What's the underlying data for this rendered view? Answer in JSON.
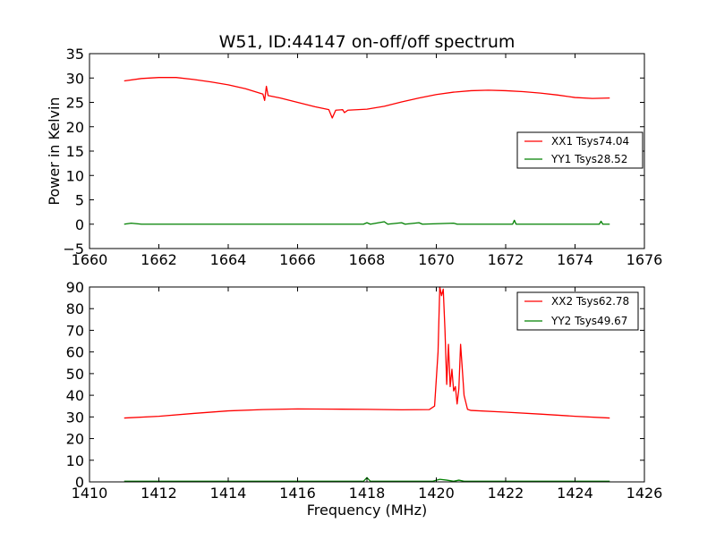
{
  "chart_data": [
    {
      "type": "line",
      "title": "W51, ID:44147 on-off/off spectrum",
      "xlabel": "",
      "ylabel": "Power in Kelvin",
      "xlim": [
        1660,
        1676
      ],
      "ylim": [
        -5,
        35
      ],
      "xticks": [
        "1660",
        "1662",
        "1664",
        "1666",
        "1668",
        "1670",
        "1672",
        "1674",
        "1676"
      ],
      "yticks": [
        "−5",
        "0",
        "5",
        "10",
        "15",
        "20",
        "25",
        "30",
        "35"
      ],
      "legend_position": "right",
      "grid": false,
      "series": [
        {
          "name": "XX1 Tsys74.04",
          "color": "#ff0000",
          "points": [
            [
              1661.0,
              29.4
            ],
            [
              1661.5,
              29.9
            ],
            [
              1662.0,
              30.1
            ],
            [
              1662.5,
              30.1
            ],
            [
              1663.0,
              29.7
            ],
            [
              1663.5,
              29.2
            ],
            [
              1664.0,
              28.6
            ],
            [
              1664.5,
              27.8
            ],
            [
              1665.0,
              26.7
            ],
            [
              1665.05,
              25.4
            ],
            [
              1665.1,
              28.3
            ],
            [
              1665.15,
              26.4
            ],
            [
              1665.5,
              25.9
            ],
            [
              1666.0,
              25.0
            ],
            [
              1666.5,
              24.1
            ],
            [
              1666.9,
              23.5
            ],
            [
              1667.0,
              21.8
            ],
            [
              1667.1,
              23.4
            ],
            [
              1667.3,
              23.5
            ],
            [
              1667.35,
              22.9
            ],
            [
              1667.45,
              23.4
            ],
            [
              1668.0,
              23.6
            ],
            [
              1668.5,
              24.2
            ],
            [
              1669.0,
              25.1
            ],
            [
              1669.5,
              25.9
            ],
            [
              1670.0,
              26.6
            ],
            [
              1670.5,
              27.1
            ],
            [
              1671.0,
              27.4
            ],
            [
              1671.5,
              27.5
            ],
            [
              1672.0,
              27.4
            ],
            [
              1672.5,
              27.2
            ],
            [
              1673.0,
              26.9
            ],
            [
              1673.5,
              26.5
            ],
            [
              1674.0,
              26.0
            ],
            [
              1674.5,
              25.8
            ],
            [
              1675.0,
              25.9
            ]
          ]
        },
        {
          "name": "YY1 Tsys28.52",
          "color": "#008000",
          "points": [
            [
              1661.0,
              0.0
            ],
            [
              1661.2,
              0.2
            ],
            [
              1661.5,
              0.0
            ],
            [
              1662.5,
              0.0
            ],
            [
              1664.0,
              0.0
            ],
            [
              1666.0,
              0.0
            ],
            [
              1667.9,
              0.0
            ],
            [
              1668.0,
              0.3
            ],
            [
              1668.1,
              0.0
            ],
            [
              1668.5,
              0.5
            ],
            [
              1668.6,
              0.0
            ],
            [
              1669.0,
              0.3
            ],
            [
              1669.1,
              0.0
            ],
            [
              1669.5,
              0.3
            ],
            [
              1669.6,
              0.0
            ],
            [
              1670.5,
              0.2
            ],
            [
              1670.6,
              0.0
            ],
            [
              1672.2,
              0.0
            ],
            [
              1672.25,
              0.8
            ],
            [
              1672.3,
              0.0
            ],
            [
              1673.0,
              0.0
            ],
            [
              1674.7,
              0.0
            ],
            [
              1674.75,
              0.6
            ],
            [
              1674.8,
              0.0
            ],
            [
              1675.0,
              0.0
            ]
          ]
        }
      ]
    },
    {
      "type": "line",
      "title": "",
      "xlabel": "Frequency (MHz)",
      "ylabel": "",
      "xlim": [
        1410,
        1426
      ],
      "ylim": [
        0,
        90
      ],
      "xticks": [
        "1410",
        "1412",
        "1414",
        "1416",
        "1418",
        "1420",
        "1422",
        "1424",
        "1426"
      ],
      "yticks": [
        "0",
        "10",
        "20",
        "30",
        "40",
        "50",
        "60",
        "70",
        "80",
        "90"
      ],
      "legend_position": "top-right",
      "grid": false,
      "series": [
        {
          "name": "XX2 Tsys62.78",
          "color": "#ff0000",
          "points": [
            [
              1411.0,
              29.5
            ],
            [
              1412.0,
              30.3
            ],
            [
              1413.0,
              31.6
            ],
            [
              1414.0,
              32.8
            ],
            [
              1415.0,
              33.4
            ],
            [
              1416.0,
              33.7
            ],
            [
              1417.0,
              33.6
            ],
            [
              1418.0,
              33.5
            ],
            [
              1419.0,
              33.3
            ],
            [
              1419.8,
              33.4
            ],
            [
              1419.95,
              35.0
            ],
            [
              1420.05,
              60.0
            ],
            [
              1420.1,
              90.0
            ],
            [
              1420.15,
              86.0
            ],
            [
              1420.2,
              89.0
            ],
            [
              1420.25,
              70.0
            ],
            [
              1420.3,
              45.0
            ],
            [
              1420.35,
              63.5
            ],
            [
              1420.4,
              44.0
            ],
            [
              1420.45,
              52.0
            ],
            [
              1420.5,
              42.0
            ],
            [
              1420.55,
              44.0
            ],
            [
              1420.6,
              36.0
            ],
            [
              1420.65,
              43.0
            ],
            [
              1420.7,
              63.5
            ],
            [
              1420.75,
              52.0
            ],
            [
              1420.8,
              40.0
            ],
            [
              1420.9,
              33.5
            ],
            [
              1421.0,
              33.0
            ],
            [
              1422.0,
              32.2
            ],
            [
              1423.0,
              31.3
            ],
            [
              1424.0,
              30.3
            ],
            [
              1425.0,
              29.5
            ]
          ]
        },
        {
          "name": "YY2 Tsys49.67",
          "color": "#008000",
          "points": [
            [
              1411.0,
              0.3
            ],
            [
              1413.0,
              0.3
            ],
            [
              1415.0,
              0.3
            ],
            [
              1417.9,
              0.3
            ],
            [
              1418.0,
              2.0
            ],
            [
              1418.1,
              0.3
            ],
            [
              1419.9,
              0.3
            ],
            [
              1420.1,
              1.2
            ],
            [
              1420.3,
              0.8
            ],
            [
              1420.5,
              0.3
            ],
            [
              1420.65,
              0.8
            ],
            [
              1420.8,
              0.3
            ],
            [
              1423.0,
              0.3
            ],
            [
              1425.0,
              0.3
            ]
          ]
        }
      ]
    }
  ]
}
